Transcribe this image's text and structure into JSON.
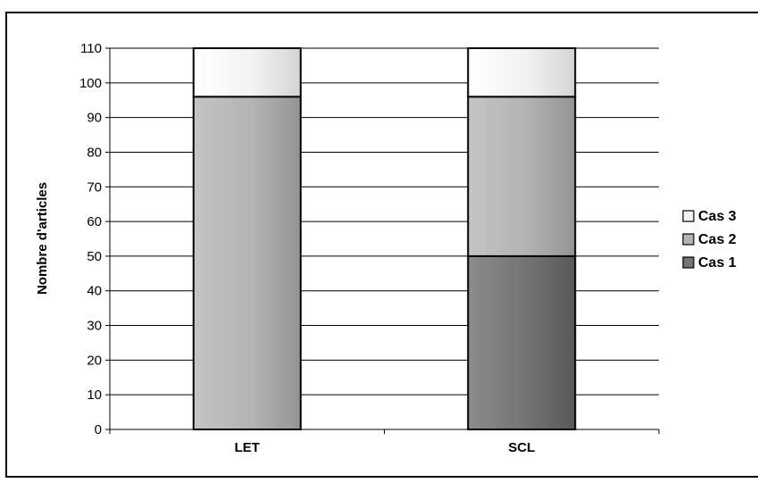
{
  "chart_data": {
    "type": "bar",
    "stacked": true,
    "categories": [
      "LET",
      "SCL"
    ],
    "series": [
      {
        "name": "Cas 1",
        "values": [
          0,
          50
        ],
        "color": "#737373"
      },
      {
        "name": "Cas 2",
        "values": [
          96,
          46
        ],
        "color": "#b3b3b3"
      },
      {
        "name": "Cas 3",
        "values": [
          14,
          14
        ],
        "color": "#f2f2f2"
      }
    ],
    "ylabel": "Nombre d'articles",
    "xlabel": "",
    "ylim": [
      0,
      110
    ],
    "yticks": [
      0,
      10,
      20,
      30,
      40,
      50,
      60,
      70,
      80,
      90,
      100,
      110
    ],
    "grid": true,
    "legend_position": "right"
  }
}
